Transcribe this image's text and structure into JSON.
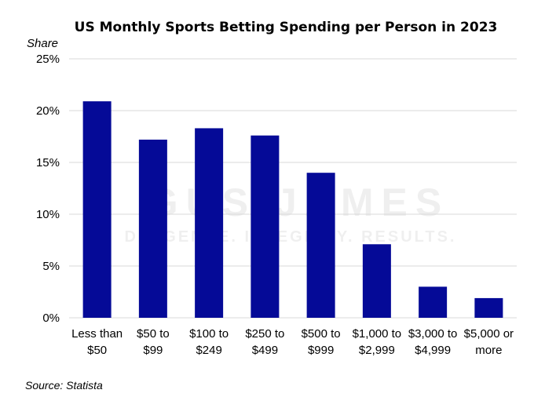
{
  "chart_data": {
    "type": "bar",
    "title": "US Monthly Sports Betting Spending per Person in 2023",
    "xlabel": "",
    "ylabel": "Share",
    "categories": [
      [
        "Less than",
        "$50"
      ],
      [
        "$50 to",
        "$99"
      ],
      [
        "$100 to",
        "$249"
      ],
      [
        "$250 to",
        "$499"
      ],
      [
        "$500 to",
        "$999"
      ],
      [
        "$1,000 to",
        "$2,999"
      ],
      [
        "$3,000 to",
        "$4,999"
      ],
      [
        "$5,000 or",
        "more"
      ]
    ],
    "values": [
      20.9,
      17.2,
      18.3,
      17.6,
      14.0,
      7.1,
      3.0,
      1.9
    ],
    "ylim": [
      0,
      25
    ],
    "yticks": [
      "0%",
      "5%",
      "10%",
      "15%",
      "20%",
      "25%"
    ],
    "grid": true,
    "bar_color": "#050a97",
    "grid_color": "#d9d9d9",
    "source": "Source: Statista"
  },
  "watermark": {
    "text_main": "GUS JAMES",
    "text_sub": "DILIGENCE. INTEGRITY. RESULTS."
  }
}
